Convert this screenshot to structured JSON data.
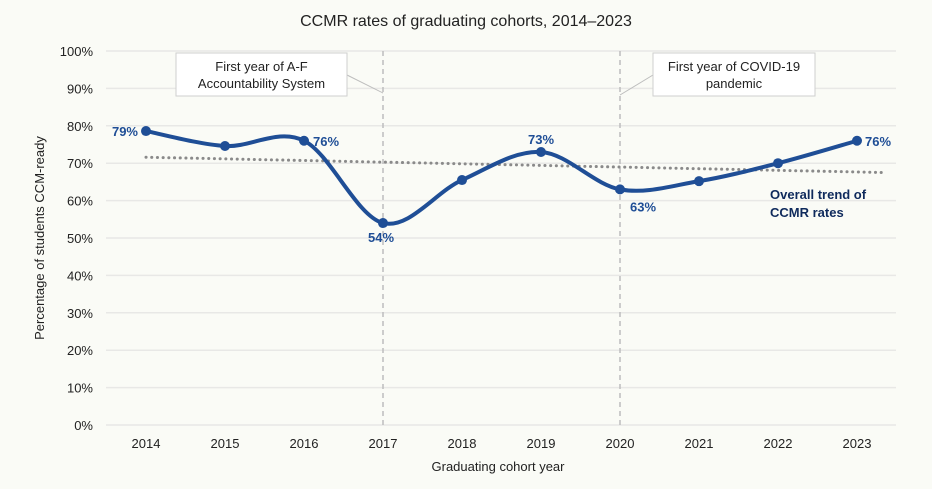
{
  "chart_data": {
    "type": "line",
    "title": "CCMR rates of graduating cohorts, 2014–2023",
    "xlabel": "Graduating cohort year",
    "ylabel": "Percentage of students CCM-ready",
    "ylim": [
      0,
      100
    ],
    "yticks": [
      0,
      10,
      20,
      30,
      40,
      50,
      60,
      70,
      80,
      90,
      100
    ],
    "ytick_labels": [
      "0%",
      "10%",
      "20%",
      "30%",
      "40%",
      "50%",
      "60%",
      "70%",
      "80%",
      "90%",
      "100%"
    ],
    "grid": true,
    "categories": [
      "2014",
      "2015",
      "2016",
      "2017",
      "2018",
      "2019",
      "2020",
      "2021",
      "2022",
      "2023"
    ],
    "series": [
      {
        "name": "CCMR rate",
        "color": "#1f4e96",
        "values": [
          78.6,
          74.6,
          76,
          54,
          65.5,
          73,
          63,
          65.2,
          70,
          76
        ],
        "data_labels": [
          "79%",
          null,
          "76%",
          "54%",
          null,
          "73%",
          "63%",
          null,
          null,
          "76%"
        ]
      },
      {
        "name": "Overall trend of CCMR rates",
        "color": "#8a8a8a",
        "style": "dotted",
        "values": [
          71.6,
          71.2,
          70.7,
          70.3,
          69.8,
          69.4,
          68.9,
          68.5,
          68.0,
          67.6
        ]
      }
    ],
    "trend_label": [
      "Overall trend of",
      "CCMR rates"
    ],
    "annotations": [
      {
        "x": "2017",
        "lines": [
          "First year of A-F",
          "Accountability System"
        ]
      },
      {
        "x": "2020",
        "lines": [
          "First year of COVID-19",
          "pandemic"
        ]
      }
    ]
  }
}
